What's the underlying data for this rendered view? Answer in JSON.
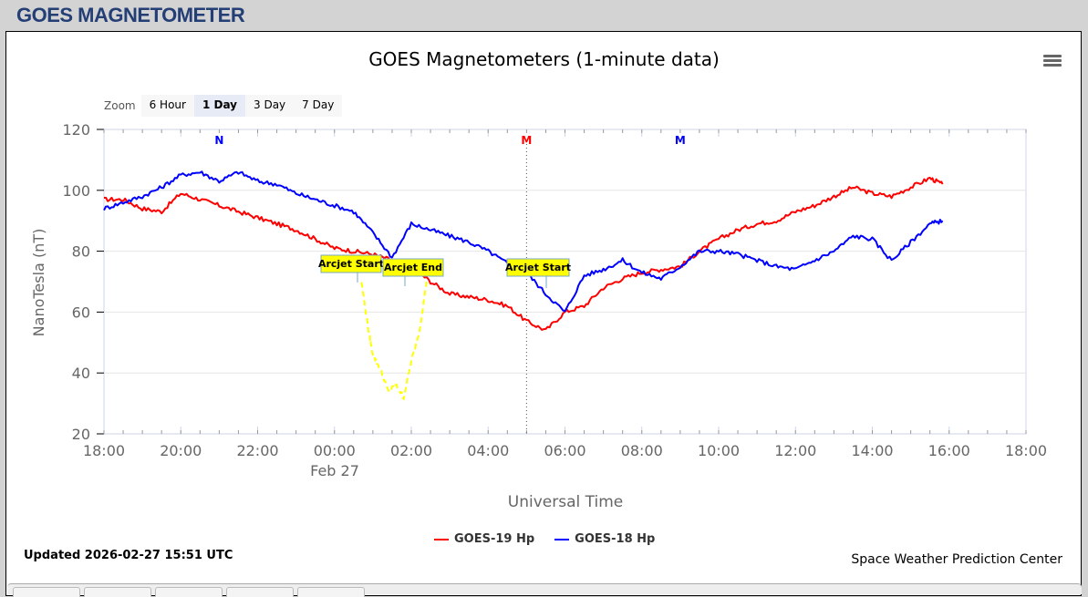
{
  "header": {
    "title": "GOES MAGNETOMETER"
  },
  "chart": {
    "title": "GOES Magnetometers (1-minute data)",
    "zoom_label": "Zoom",
    "zoom_buttons": [
      {
        "label": "6 Hour",
        "active": false
      },
      {
        "label": "1 Day",
        "active": true
      },
      {
        "label": "3 Day",
        "active": false
      },
      {
        "label": "7 Day",
        "active": false
      }
    ],
    "y_axis_label": "NanoTesla (nT)",
    "x_axis_label": "Universal Time",
    "date_label": "Feb 27",
    "legend": [
      {
        "label": "GOES-19 Hp",
        "color": "#ff0000"
      },
      {
        "label": "GOES-18 Hp",
        "color": "#0000ff"
      }
    ],
    "updated": "Updated 2026-02-27 15:51 UTC",
    "credit": "Space Weather Prediction Center",
    "flags": [
      {
        "label": "N",
        "color": "#0000ff",
        "time": "21:00"
      },
      {
        "label": "M",
        "color": "#ff0000",
        "time": "05:00"
      },
      {
        "label": "M",
        "color": "#0000ff",
        "time": "09:00"
      }
    ],
    "annotations": [
      {
        "label": "Arcjet Start",
        "time": "00:40"
      },
      {
        "label": "Arcjet End",
        "time": "01:50"
      },
      {
        "label": "Arcjet Start",
        "time": "05:20"
      }
    ]
  },
  "chart_data": {
    "type": "line",
    "title": "GOES Magnetometers (1-minute data)",
    "xlabel": "Universal Time",
    "ylabel": "NanoTesla (nT)",
    "ylim": [
      20,
      120
    ],
    "yticks": [
      20,
      40,
      60,
      80,
      100,
      120
    ],
    "xticks": [
      "18:00",
      "20:00",
      "22:00",
      "00:00",
      "02:00",
      "04:00",
      "06:00",
      "08:00",
      "10:00",
      "12:00",
      "14:00",
      "16:00",
      "18:00"
    ],
    "x_date_label": "Feb 27",
    "grid": true,
    "legend_position": "bottom",
    "x_hours": [
      0,
      0.5,
      1,
      1.5,
      2,
      2.5,
      3,
      3.5,
      4,
      4.5,
      5,
      5.5,
      6,
      6.5,
      7,
      7.5,
      8,
      8.5,
      9,
      9.5,
      10,
      10.5,
      11,
      11.5,
      12,
      12.5,
      13,
      13.5,
      14,
      14.5,
      15,
      15.5,
      16,
      16.5,
      17,
      17.5,
      18,
      18.5,
      19,
      19.5,
      20,
      20.5,
      21,
      21.5,
      21.83
    ],
    "x_hours_start": "18:00 (Feb 26)",
    "series": [
      {
        "name": "GOES-19 Hp",
        "color": "#ff0000",
        "values": [
          97,
          97,
          94,
          93,
          99,
          97,
          95,
          93,
          91,
          89,
          87,
          84,
          81,
          80,
          79,
          77,
          75,
          70,
          66,
          65,
          64,
          62,
          57,
          54,
          60,
          62,
          68,
          71,
          73,
          74,
          75,
          80,
          84,
          87,
          89,
          90,
          93,
          95,
          98,
          101,
          99,
          98,
          101,
          104,
          102
        ]
      },
      {
        "name": "GOES-18 Hp",
        "color": "#0000ff",
        "values": [
          94,
          96,
          98,
          101,
          105,
          106,
          103,
          106,
          103,
          102,
          99,
          97,
          95,
          93,
          86,
          78,
          89,
          87,
          85,
          83,
          80,
          76,
          73,
          66,
          60,
          72,
          74,
          77,
          73,
          71,
          75,
          80,
          80,
          79,
          77,
          75,
          74,
          77,
          80,
          85,
          84,
          77,
          83,
          89,
          90
        ]
      },
      {
        "name": "Arcjet (GOES-18)",
        "color": "#ffff00",
        "style": "dashed",
        "x_hours": [
          6.7,
          6.9,
          7.0,
          7.2,
          7.4,
          7.6,
          7.8,
          8.0,
          8.2,
          8.4
        ],
        "values": [
          70,
          53,
          46,
          41,
          34,
          36,
          32,
          44,
          53,
          70
        ]
      }
    ]
  }
}
